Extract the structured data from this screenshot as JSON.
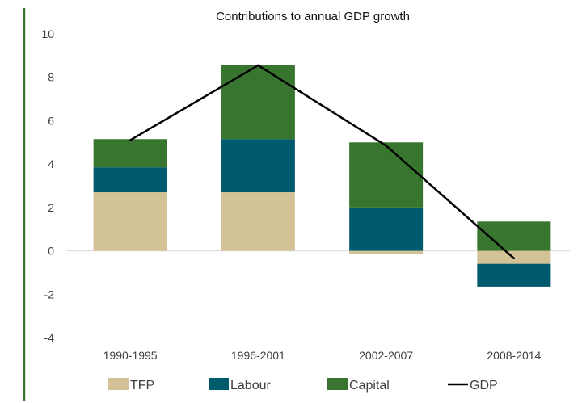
{
  "chart_data": {
    "type": "bar",
    "title": "Contributions to annual GDP growth",
    "xlabel": "",
    "ylabel": "",
    "categories": [
      "1990-1995",
      "1996-2001",
      "2002-2007",
      "2008-2014"
    ],
    "ylim": [
      -4,
      10
    ],
    "yticks": [
      -4,
      -2,
      0,
      2,
      4,
      6,
      8,
      10
    ],
    "stacked": true,
    "series": [
      {
        "name": "TFP",
        "kind": "bar",
        "color": "#d3c295",
        "values": [
          2.7,
          2.7,
          -0.15,
          -0.6
        ]
      },
      {
        "name": "Labour",
        "kind": "bar",
        "color": "#005a6e",
        "values": [
          1.15,
          2.45,
          2.0,
          -1.05
        ]
      },
      {
        "name": "Capital",
        "kind": "bar",
        "color": "#38752f",
        "values": [
          1.3,
          3.4,
          3.0,
          1.35
        ]
      },
      {
        "name": "GDP",
        "kind": "line",
        "color": "#000000",
        "values": [
          5.1,
          8.55,
          4.85,
          -0.35
        ]
      }
    ],
    "grid": false,
    "legend": "bottom",
    "accent_color": "#38752f"
  }
}
